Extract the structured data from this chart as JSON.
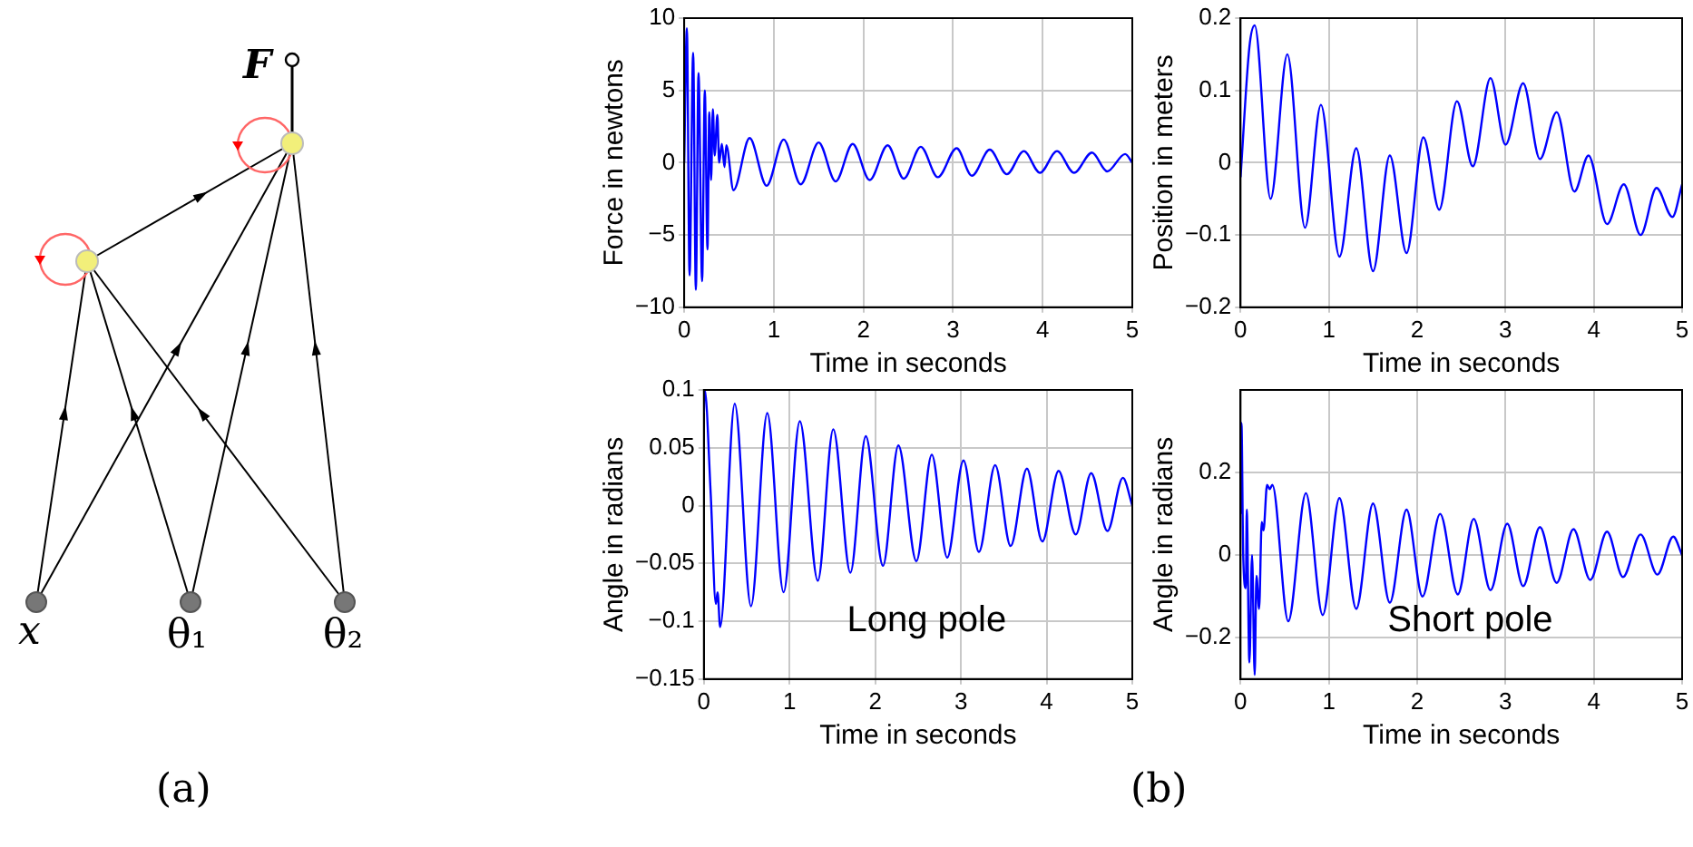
{
  "chart_data": [
    {
      "type": "other",
      "annotations": [
        "F",
        "x",
        "θ₁",
        "θ₂",
        "(a)",
        "(b)"
      ]
    },
    {
      "type": "line",
      "xlabel": "Time in seconds",
      "ylabel": "Force in newtons",
      "xlim": [
        0,
        5
      ],
      "xticks": [
        0,
        1,
        2,
        3,
        4,
        5
      ],
      "ylim": [
        -10,
        10
      ],
      "yticks": [
        -10,
        -5,
        0,
        5,
        10
      ],
      "grid": true,
      "line_style": "solid",
      "x": [
        0,
        0.03,
        0.06,
        0.1,
        0.13,
        0.16,
        0.2,
        0.23,
        0.26,
        0.28,
        0.3,
        0.32,
        0.34,
        0.37,
        0.39,
        0.42,
        0.45,
        0.47,
        0.55,
        0.73,
        0.92,
        1.11,
        1.3,
        1.5,
        1.69,
        1.88,
        2.07,
        2.27,
        2.45,
        2.64,
        2.83,
        3.04,
        3.21,
        3.41,
        3.6,
        3.79,
        3.97,
        4.16,
        4.35,
        4.55,
        4.72,
        4.92,
        5
      ],
      "series": [
        {
          "color": "#0000ff",
          "values": [
            0,
            9.3,
            -7.8,
            7.6,
            -8.8,
            6.2,
            -8.2,
            5,
            -6,
            3.5,
            -1.2,
            3.7,
            0.5,
            3.3,
            0,
            1.3,
            -0.3,
            1.2,
            -1.9,
            1.7,
            -1.6,
            1.6,
            -1.5,
            1.4,
            -1.3,
            1.3,
            -1.2,
            1.2,
            -1.1,
            1.1,
            -1,
            1,
            -0.9,
            0.9,
            -0.8,
            0.8,
            -0.7,
            0.8,
            -0.7,
            0.7,
            -0.6,
            0.6,
            0
          ]
        }
      ]
    },
    {
      "type": "line",
      "xlabel": "Time in seconds",
      "ylabel": "Position in meters",
      "xlim": [
        0,
        5
      ],
      "xticks": [
        0,
        1,
        2,
        3,
        4,
        5
      ],
      "ylim": [
        -0.2,
        0.2
      ],
      "yticks": [
        -0.2,
        -0.1,
        0,
        0.1,
        0.2
      ],
      "grid": true,
      "line_style": "solid",
      "x": [
        0,
        0.1,
        0.16,
        0.34,
        0.53,
        0.73,
        0.91,
        1.12,
        1.31,
        1.5,
        1.69,
        1.88,
        2.07,
        2.25,
        2.45,
        2.63,
        2.83,
        3.0,
        3.2,
        3.39,
        3.58,
        3.78,
        3.94,
        4.15,
        4.34,
        4.53,
        4.71,
        4.89,
        5
      ],
      "series": [
        {
          "color": "#0000ff",
          "values": [
            -0.02,
            0.16,
            0.19,
            -0.05,
            0.15,
            -0.09,
            0.08,
            -0.13,
            0.02,
            -0.15,
            0.01,
            -0.125,
            0.035,
            -0.065,
            0.085,
            -0.005,
            0.117,
            0.025,
            0.11,
            0.005,
            0.07,
            -0.04,
            0.01,
            -0.085,
            -0.03,
            -0.1,
            -0.035,
            -0.075,
            -0.03
          ]
        }
      ]
    },
    {
      "type": "line",
      "xlabel": "Time in seconds",
      "ylabel": "Angle in radians",
      "xlim": [
        0,
        5
      ],
      "xticks": [
        0,
        1,
        2,
        3,
        4,
        5
      ],
      "ylim": [
        -0.15,
        0.1
      ],
      "yticks": [
        -0.15,
        -0.1,
        -0.05,
        0,
        0.05,
        0.1
      ],
      "grid": true,
      "line_style": "solid",
      "annotations": [
        "Long pole"
      ],
      "x": [
        0,
        0.01,
        0.08,
        0.14,
        0.16,
        0.19,
        0.36,
        0.55,
        0.74,
        0.93,
        1.12,
        1.33,
        1.51,
        1.71,
        1.89,
        2.09,
        2.27,
        2.48,
        2.66,
        2.84,
        3.03,
        3.21,
        3.4,
        3.58,
        3.77,
        3.95,
        4.14,
        4.34,
        4.52,
        4.71,
        4.89,
        5
      ],
      "series": [
        {
          "color": "#0000ff",
          "values": [
            0.08,
            0.1,
            0.01,
            -0.085,
            -0.075,
            -0.105,
            0.088,
            -0.087,
            0.08,
            -0.075,
            0.073,
            -0.065,
            0.066,
            -0.058,
            0.06,
            -0.052,
            0.052,
            -0.048,
            0.044,
            -0.045,
            0.039,
            -0.04,
            0.035,
            -0.035,
            0.032,
            -0.031,
            0.03,
            -0.025,
            0.028,
            -0.022,
            0.024,
            0
          ]
        }
      ]
    },
    {
      "type": "line",
      "xlabel": "Time in seconds",
      "ylabel": "Angle in radians",
      "xlim": [
        0,
        5
      ],
      "xticks": [
        0,
        1,
        2,
        3,
        4,
        5
      ],
      "ylim": [
        -0.3,
        0.4
      ],
      "yticks": [
        -0.2,
        0,
        0.2
      ],
      "grid": true,
      "line_style": "solid",
      "annotations": [
        "Short pole"
      ],
      "x": [
        0,
        0.01,
        0.03,
        0.06,
        0.07,
        0.1,
        0.13,
        0.16,
        0.18,
        0.21,
        0.24,
        0.26,
        0.3,
        0.33,
        0.36,
        0.54,
        0.74,
        0.93,
        1.12,
        1.31,
        1.5,
        1.69,
        1.88,
        2.06,
        2.26,
        2.46,
        2.64,
        2.83,
        3.02,
        3.2,
        3.39,
        3.58,
        3.77,
        3.96,
        4.15,
        4.33,
        4.53,
        4.72,
        4.9,
        5
      ],
      "series": [
        {
          "color": "#0000ff",
          "values": [
            0.1,
            0.32,
            0,
            -0.08,
            0.11,
            -0.26,
            0,
            -0.29,
            -0.05,
            -0.13,
            0.08,
            0.06,
            0.17,
            0.16,
            0.17,
            -0.16,
            0.15,
            -0.145,
            0.138,
            -0.13,
            0.125,
            -0.115,
            0.11,
            -0.1,
            0.1,
            -0.095,
            0.088,
            -0.085,
            0.076,
            -0.075,
            0.068,
            -0.067,
            0.063,
            -0.06,
            0.057,
            -0.053,
            0.05,
            -0.047,
            0.045,
            0
          ]
        }
      ]
    }
  ]
}
